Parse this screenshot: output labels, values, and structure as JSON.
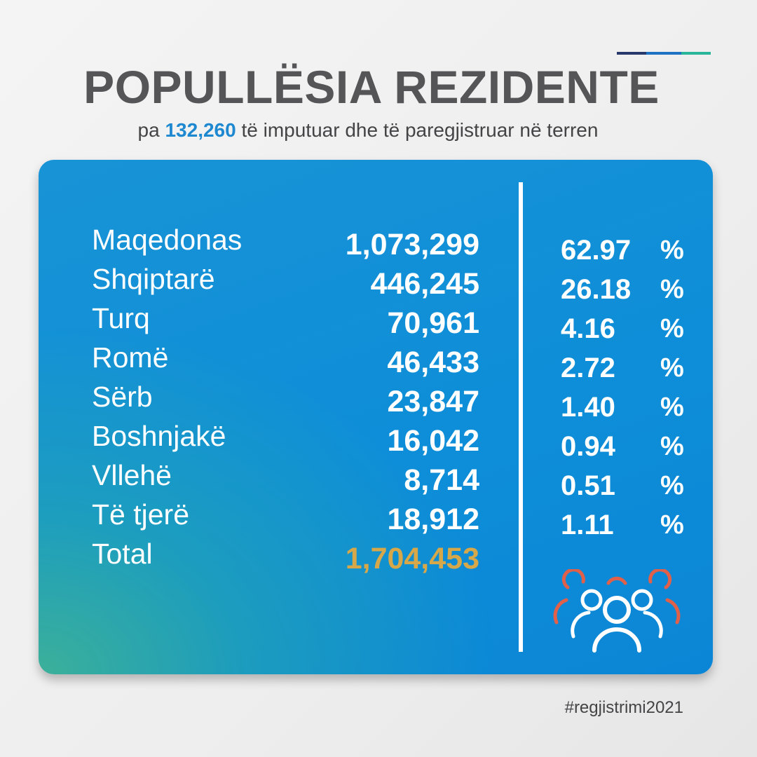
{
  "header": {
    "title": "POPULLËSIA REZIDENTE",
    "subtitle_prefix": "pa",
    "subtitle_highlight": "132,260",
    "subtitle_suffix": "të imputuar dhe të paregjistruar në terren"
  },
  "table": {
    "rows": [
      {
        "label": "Maqedonas",
        "value": "1,073,299",
        "percent": "62.97"
      },
      {
        "label": "Shqiptarë",
        "value": "446,245",
        "percent": "26.18"
      },
      {
        "label": "Turq",
        "value": "70,961",
        "percent": "4.16"
      },
      {
        "label": "Romë",
        "value": "46,433",
        "percent": "2.72"
      },
      {
        "label": "Sërb",
        "value": "23,847",
        "percent": "1.40"
      },
      {
        "label": "Boshnjakë",
        "value": "16,042",
        "percent": "0.94"
      },
      {
        "label": "Vllehë",
        "value": "8,714",
        "percent": "0.51"
      },
      {
        "label": "Të tjerë",
        "value": "18,912",
        "percent": "1.11"
      }
    ],
    "percent_sign": "%",
    "total_label": "Total",
    "total_value": "1,704,453"
  },
  "icon": "people-group-icon",
  "colors": {
    "card_blue": "#0e8ed8",
    "card_green": "#3eb296",
    "highlight_blue": "#1e88d0",
    "total_gold": "#d6a84a",
    "icon_red": "#e0604a"
  },
  "footer": {
    "hashtag": "#regjistrimi2021"
  }
}
